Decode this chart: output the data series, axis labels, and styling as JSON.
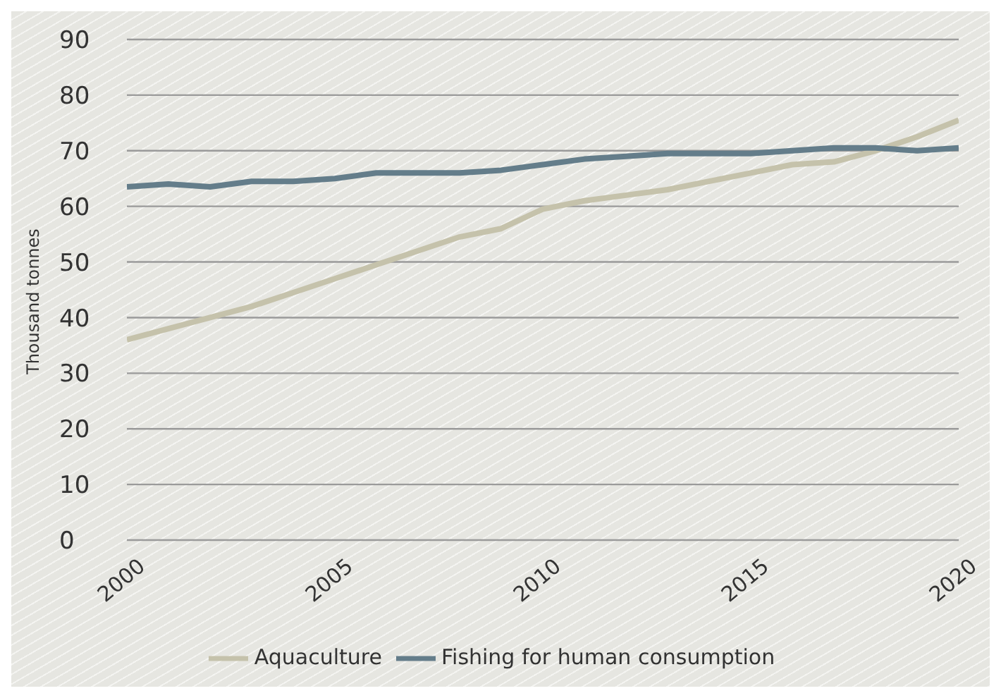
{
  "chart_data": {
    "type": "line",
    "ylabel": "Thousand tonnes",
    "x": [
      2000,
      2001,
      2002,
      2003,
      2004,
      2005,
      2006,
      2007,
      2008,
      2009,
      2010,
      2011,
      2012,
      2013,
      2014,
      2015,
      2016,
      2017,
      2018,
      2019,
      2020
    ],
    "series": [
      {
        "name": "Aquaculture",
        "color": "#c5c2ab",
        "values": [
          36,
          38,
          40,
          42,
          44.5,
          47,
          49.5,
          52,
          54.5,
          56,
          59.5,
          61,
          62,
          63,
          64.5,
          66,
          67.5,
          68,
          70,
          72.5,
          75.5
        ]
      },
      {
        "name": "Fishing for human consumption",
        "color": "#647d8a",
        "values": [
          63.5,
          64,
          63.5,
          64.5,
          64.5,
          65,
          66,
          66,
          66,
          66.5,
          67.5,
          68.5,
          69,
          69.5,
          69.5,
          69.5,
          70,
          70.5,
          70.5,
          70,
          70.5
        ]
      }
    ],
    "xlim": [
      2000,
      2020
    ],
    "xticks": [
      2000,
      2005,
      2010,
      2015,
      2020
    ],
    "ylim": [
      0,
      90
    ],
    "yticks": [
      0,
      10,
      20,
      30,
      40,
      50,
      60,
      70,
      80,
      90
    ],
    "grid": "y",
    "legend": "bottom",
    "marker": "none",
    "line_style": "solid"
  }
}
